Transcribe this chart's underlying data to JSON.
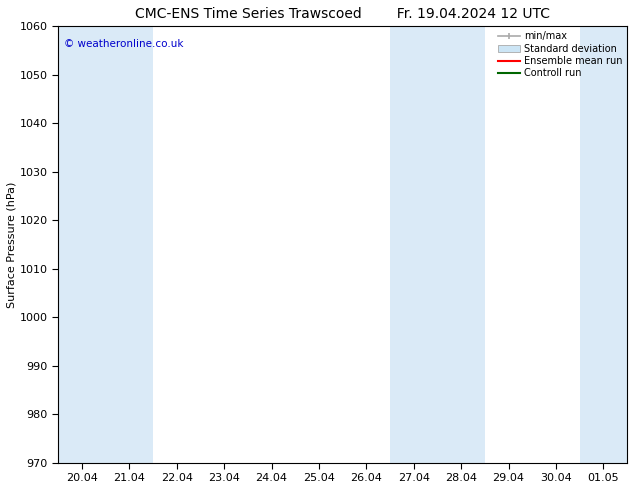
{
  "title": "CMC-ENS Time Series Trawscoed",
  "title_right": "Fr. 19.04.2024 12 UTC",
  "ylabel": "Surface Pressure (hPa)",
  "ylim": [
    970,
    1060
  ],
  "yticks": [
    970,
    980,
    990,
    1000,
    1010,
    1020,
    1030,
    1040,
    1050,
    1060
  ],
  "xtick_labels": [
    "20.04",
    "21.04",
    "22.04",
    "23.04",
    "24.04",
    "25.04",
    "26.04",
    "27.04",
    "28.04",
    "29.04",
    "30.04",
    "01.05"
  ],
  "n_xticks": 12,
  "shaded_band_centers": [
    0,
    1,
    7,
    8,
    11
  ],
  "band_color": "#daeaf7",
  "copyright_text": "© weatheronline.co.uk",
  "copyright_color": "#0000cc",
  "legend_labels": [
    "min/max",
    "Standard deviation",
    "Ensemble mean run",
    "Controll run"
  ],
  "legend_line_color": "#aaaaaa",
  "legend_std_color": "#cce5f5",
  "legend_ens_color": "#ff0000",
  "legend_ctrl_color": "#006600",
  "bg_color": "#ffffff",
  "title_fontsize": 10,
  "tick_fontsize": 8,
  "ylabel_fontsize": 8
}
